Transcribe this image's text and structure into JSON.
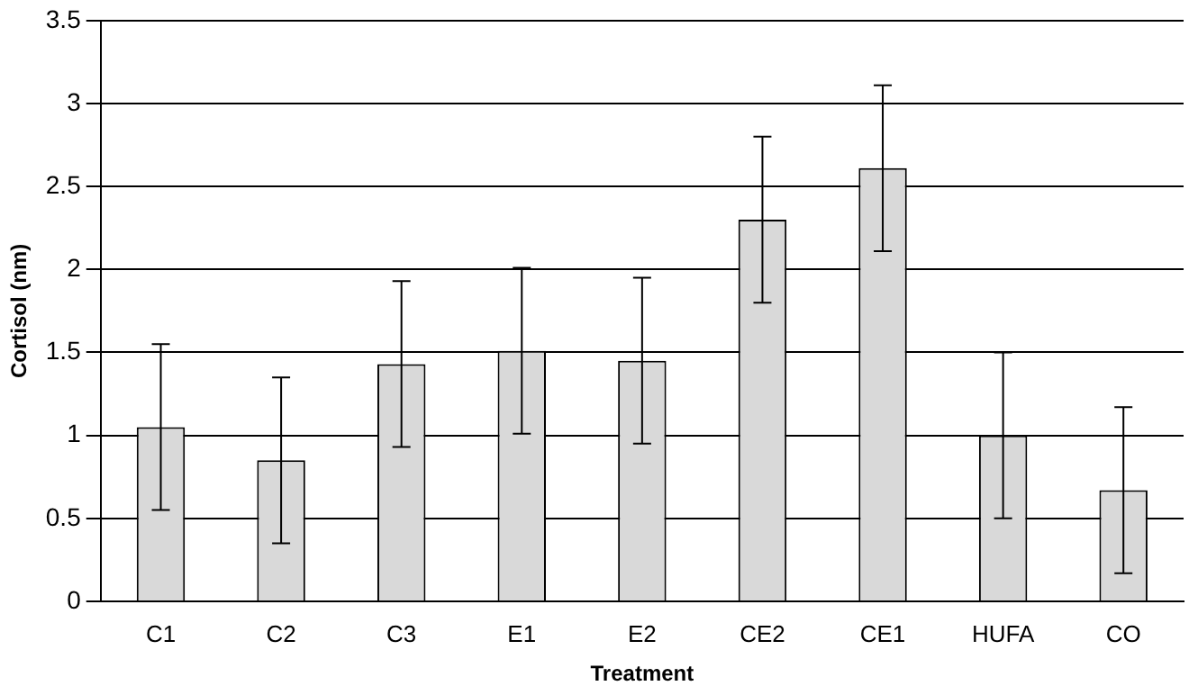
{
  "chart_data": {
    "type": "bar",
    "xlabel": "Treatment",
    "ylabel": "Cortisol (nm)",
    "categories": [
      "C1",
      "C2",
      "C3",
      "E1",
      "E2",
      "CE2",
      "CE1",
      "HUFA",
      "CO"
    ],
    "values": [
      1.05,
      0.85,
      1.43,
      1.51,
      1.45,
      2.3,
      2.61,
      1.0,
      0.67
    ],
    "errors": [
      0.5,
      0.5,
      0.5,
      0.5,
      0.5,
      0.5,
      0.5,
      0.5,
      0.5
    ],
    "color": "#d9d9d9",
    "ylim": [
      0,
      3.5
    ],
    "yticks": [
      0,
      0.5,
      1,
      1.5,
      2,
      2.5,
      3,
      3.5
    ],
    "grid": "y",
    "legend": false
  }
}
